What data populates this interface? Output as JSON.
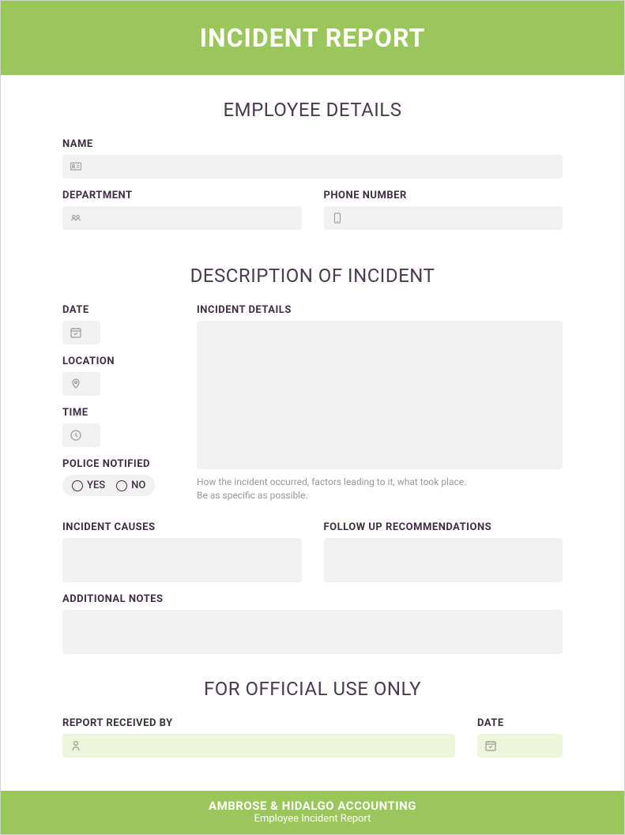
{
  "colors": {
    "brand_green": "#9bc65b",
    "input_gray": "#f1f1f1",
    "input_green": "#edf5da",
    "text_dark": "#3d2f3f",
    "text_muted": "#999999",
    "background": "#ffffff"
  },
  "header": {
    "title": "INCIDENT REPORT"
  },
  "sections": {
    "employee": {
      "title": "EMPLOYEE DETAILS",
      "fields": {
        "name_label": "NAME",
        "department_label": "DEPARTMENT",
        "phone_label": "PHONE NUMBER"
      }
    },
    "incident": {
      "title": "DESCRIPTION OF INCIDENT",
      "fields": {
        "date_label": "DATE",
        "location_label": "LOCATION",
        "time_label": "TIME",
        "police_label": "POLICE NOTIFIED",
        "police_yes": "YES",
        "police_no": "NO",
        "details_label": "INCIDENT DETAILS",
        "details_helper": "How the incident occurred, factors leading to it, what took place.\nBe as specific as possible.",
        "causes_label": "INCIDENT CAUSES",
        "followup_label": "FOLLOW UP RECOMMENDATIONS",
        "notes_label": "ADDITIONAL NOTES"
      }
    },
    "official": {
      "title": "FOR OFFICIAL USE ONLY",
      "fields": {
        "received_label": "REPORT RECEIVED BY",
        "date_label": "DATE"
      }
    }
  },
  "footer": {
    "company": "AMBROSE & HIDALGO ACCOUNTING",
    "subtitle": "Employee Incident Report"
  }
}
